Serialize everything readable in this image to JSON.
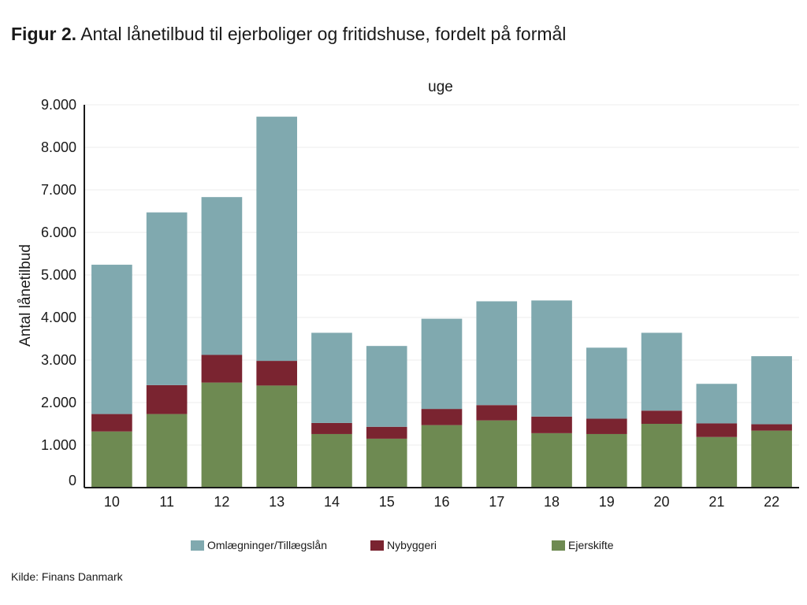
{
  "title": {
    "lead": "Figur 2.",
    "text": "Antal lånetilbud til ejerboliger og fritidshuse, fordelt på formål"
  },
  "source": "Kilde: Finans Danmark",
  "chart_data": {
    "type": "bar",
    "stacked": true,
    "xlabel": "uge",
    "ylabel": "Antal lånetilbud",
    "ylim": [
      0,
      9000
    ],
    "yticks": [
      0,
      1000,
      2000,
      3000,
      4000,
      5000,
      6000,
      7000,
      8000,
      9000
    ],
    "ytick_labels": [
      "0",
      "1.000",
      "2.000",
      "3.000",
      "4.000",
      "5.000",
      "6.000",
      "7.000",
      "8.000",
      "9.000"
    ],
    "categories": [
      "10",
      "11",
      "12",
      "13",
      "14",
      "15",
      "16",
      "17",
      "18",
      "19",
      "20",
      "21",
      "22"
    ],
    "series": [
      {
        "name": "Ejerskifte",
        "color": "#6e8a52",
        "values": [
          1320,
          1730,
          2470,
          2400,
          1260,
          1150,
          1470,
          1580,
          1280,
          1260,
          1500,
          1190,
          1340
        ]
      },
      {
        "name": "Nybyggeri",
        "color": "#7a2430",
        "values": [
          410,
          680,
          650,
          580,
          260,
          280,
          380,
          360,
          390,
          360,
          310,
          320,
          150
        ]
      },
      {
        "name": "Omlægninger/Tillægslån",
        "color": "#80a9af",
        "values": [
          3510,
          4060,
          3710,
          5740,
          2120,
          1900,
          2120,
          2440,
          2730,
          1670,
          1830,
          930,
          1600
        ]
      }
    ],
    "legend": {
      "placement": "bottom",
      "order": [
        "Omlægninger/Tillægslån",
        "Nybyggeri",
        "Ejerskifte"
      ]
    },
    "grid": true
  }
}
